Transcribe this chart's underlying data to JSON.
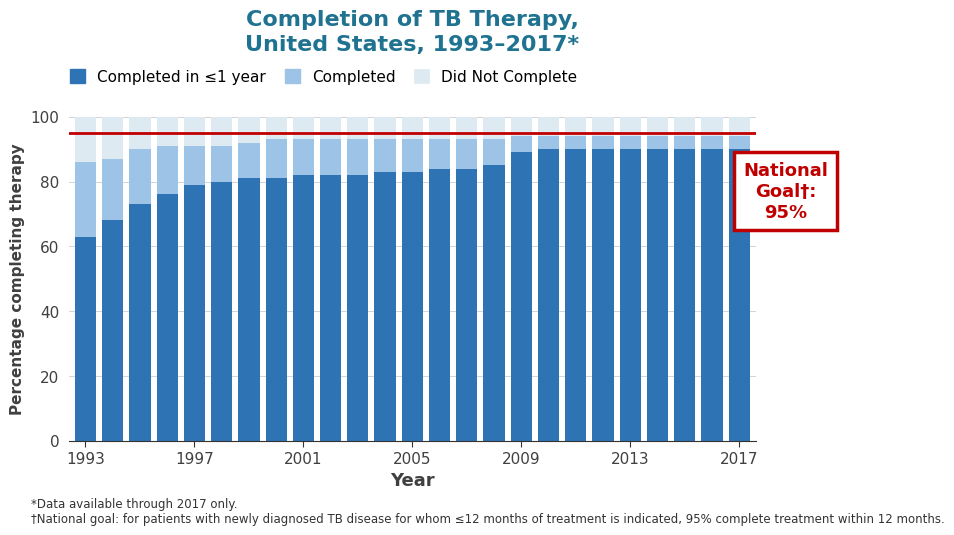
{
  "title": "Completion of TB Therapy,\nUnited States, 1993–2017*",
  "xlabel": "Year",
  "ylabel": "Percentage completing therapy",
  "years": [
    1993,
    1994,
    1995,
    1996,
    1997,
    1998,
    1999,
    2000,
    2001,
    2002,
    2003,
    2004,
    2005,
    2006,
    2007,
    2008,
    2009,
    2010,
    2011,
    2012,
    2013,
    2014,
    2015,
    2016,
    2017
  ],
  "completed_leq1": [
    63,
    68,
    73,
    76,
    79,
    80,
    81,
    81,
    82,
    82,
    82,
    83,
    83,
    84,
    84,
    85,
    89,
    90,
    90,
    90,
    90,
    90,
    90,
    90,
    90
  ],
  "completed": [
    23,
    19,
    17,
    15,
    12,
    11,
    11,
    12,
    11,
    11,
    11,
    10,
    10,
    9,
    9,
    8,
    5,
    4,
    4,
    4,
    4,
    4,
    4,
    4,
    4
  ],
  "did_not_complete": [
    14,
    13,
    10,
    9,
    9,
    9,
    8,
    7,
    7,
    7,
    7,
    7,
    7,
    7,
    7,
    7,
    6,
    6,
    6,
    6,
    6,
    6,
    6,
    6,
    6
  ],
  "color_dark_blue": "#2E74B5",
  "color_med_blue": "#9DC3E6",
  "color_light_blue": "#DEEAF1",
  "goal_line": 95,
  "goal_color": "#C00000",
  "title_color": "#1F7391",
  "legend_labels": [
    "Completed in ≤1 year",
    "Completed",
    "Did Not Complete"
  ],
  "footnote1": "*Data available through 2017 only.",
  "footnote2": "†National goal: for patients with newly diagnosed TB disease for whom ≤12 months of treatment is indicated, 95% complete treatment within 12 months.",
  "ylim": [
    0,
    100
  ],
  "goal_box_text": "National\nGoal†:\n95%",
  "goal_box_color": "#C00000",
  "background_color": "#FFFFFF"
}
